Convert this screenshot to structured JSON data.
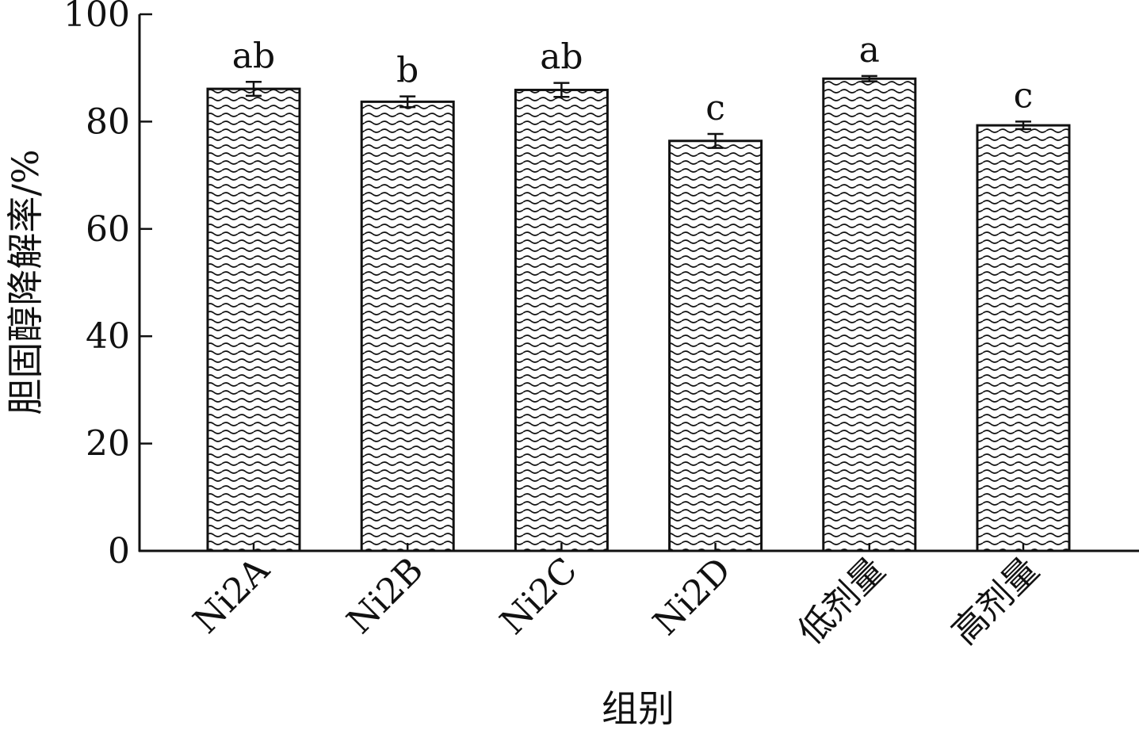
{
  "chart_data": {
    "type": "bar",
    "title": "",
    "xlabel": "组别",
    "ylabel": "胆固醇降解率/%",
    "ylim": [
      0,
      100
    ],
    "yticks": [
      0,
      20,
      40,
      60,
      80,
      100
    ],
    "categories": [
      "Ni2A",
      "Ni2B",
      "Ni2C",
      "Ni2D",
      "低剂量",
      "高剂量"
    ],
    "values": [
      86.1,
      83.7,
      85.9,
      76.4,
      88.0,
      79.3
    ],
    "errors": [
      1.3,
      1.0,
      1.3,
      1.3,
      0.5,
      0.7
    ],
    "significance": [
      "ab",
      "b",
      "ab",
      "c",
      "a",
      "c"
    ],
    "bar_fill": "wavy-hatch",
    "colors": {
      "bar_edge": "#111111",
      "pattern": "#111111",
      "background": "#ffffff"
    },
    "grid": false,
    "legend": "none"
  }
}
